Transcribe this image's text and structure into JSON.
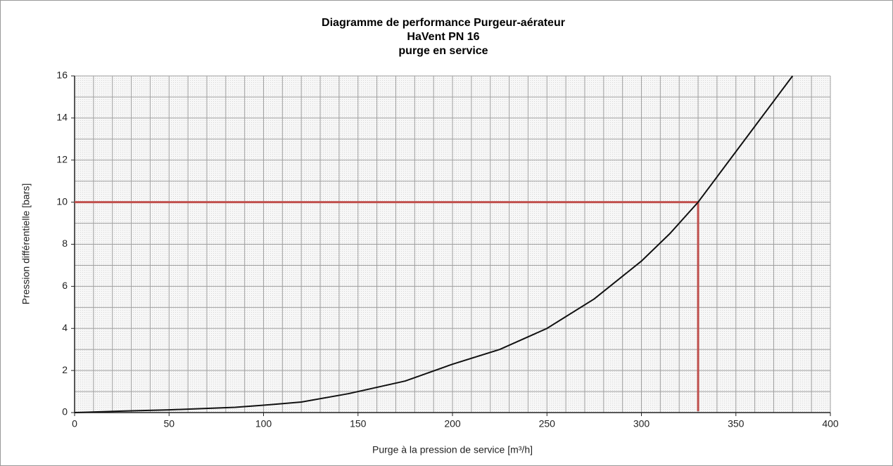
{
  "chart_data": {
    "type": "line",
    "title": [
      "Diagramme de performance Purgeur-aérateur",
      "HaVent PN 16",
      "purge en service"
    ],
    "xlabel": "Purge à la pression de service [m³/h]",
    "ylabel": "Pression différentielle [bars]",
    "xlim": [
      0,
      400
    ],
    "ylim": [
      0,
      16
    ],
    "xticks": [
      0,
      50,
      100,
      150,
      200,
      250,
      300,
      350,
      400
    ],
    "yticks": [
      0,
      2,
      4,
      6,
      8,
      10,
      12,
      14,
      16
    ],
    "xgrid": [
      0,
      10,
      20,
      30,
      40,
      50,
      60,
      70,
      80,
      90,
      100,
      110,
      120,
      130,
      140,
      150,
      160,
      170,
      180,
      190,
      200,
      210,
      220,
      230,
      240,
      250,
      260,
      270,
      280,
      290,
      300,
      310,
      320,
      330,
      340,
      350,
      360,
      370,
      380,
      390,
      400
    ],
    "ygrid": [
      0,
      1,
      2,
      3,
      4,
      5,
      6,
      7,
      8,
      9,
      10,
      11,
      12,
      13,
      14,
      15,
      16
    ],
    "grid": true,
    "series": [
      {
        "name": "HaVent PN 16",
        "color": "#111111",
        "x": [
          0,
          25,
          50,
          85,
          100,
          120,
          145,
          175,
          200,
          225,
          250,
          275,
          300,
          315,
          330,
          350,
          380
        ],
        "values": [
          0,
          0.07,
          0.13,
          0.25,
          0.35,
          0.5,
          0.9,
          1.5,
          2.3,
          3,
          4,
          5.4,
          7.2,
          8.5,
          10,
          12.4,
          16
        ]
      }
    ],
    "reference": {
      "x": 330,
      "y": 10,
      "color": "#c0504d"
    }
  }
}
